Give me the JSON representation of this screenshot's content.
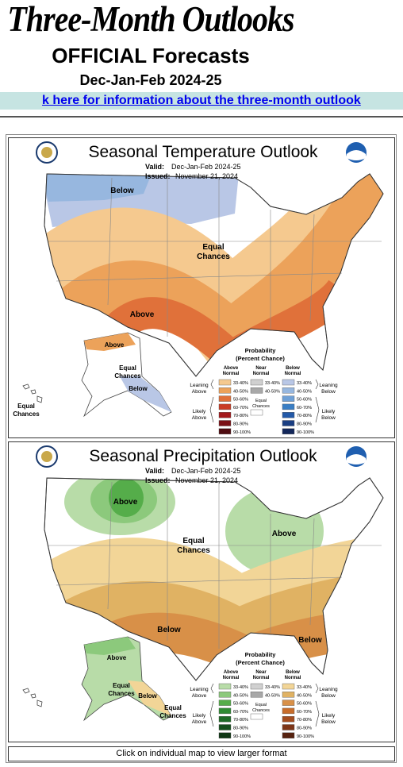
{
  "header": {
    "title": "Three-Month Outlooks",
    "subtitle": "OFFICIAL Forecasts",
    "period": "Dec-Jan-Feb 2024-25"
  },
  "link": "k here for information about the three-month outlook",
  "maps": [
    {
      "title": "Seasonal Temperature Outlook",
      "valid_label": "Valid:",
      "valid": "Dec-Jan-Feb 2024-25",
      "issued_label": "Issued:",
      "issued": "November 21, 2024",
      "regions": [
        [
          "Below"
        ],
        [
          "Equal",
          "Chances"
        ],
        [
          "Above"
        ],
        [
          "Above"
        ],
        [
          "Equal",
          "Chances"
        ],
        [
          "Below"
        ],
        [
          "Equal",
          "Chances"
        ]
      ],
      "legend": {
        "title": "Probability",
        "subtitle": "(Percent Chance)",
        "headers": [
          [
            "Above",
            "Normal"
          ],
          [
            "Near",
            "Normal"
          ],
          [
            "Below",
            "Normal"
          ]
        ],
        "above": [
          "33-40%",
          "40-50%",
          "50-60%",
          "60-70%",
          "70-80%",
          "80-90%",
          "90-100%"
        ],
        "near": [
          "33-40%",
          "40-50%"
        ],
        "below": [
          "33-40%",
          "40-50%",
          "50-60%",
          "60-70%",
          "70-80%",
          "80-90%",
          "90-100%"
        ],
        "equal": [
          "Equal",
          "Chances"
        ],
        "leaning_above": [
          "Leaning",
          "Above"
        ],
        "likely_above": [
          "Likely",
          "Above"
        ],
        "leaning_below": [
          "Leaning",
          "Below"
        ],
        "likely_below": [
          "Likely",
          "Below"
        ]
      }
    },
    {
      "title": "Seasonal Precipitation Outlook",
      "valid_label": "Valid:",
      "valid": "Dec-Jan-Feb 2024-25",
      "issued_label": "Issued:",
      "issued": "November 21, 2024",
      "regions": [
        [
          "Above"
        ],
        [
          "Equal",
          "Chances"
        ],
        [
          "Above"
        ],
        [
          "Below"
        ],
        [
          "Below"
        ],
        [
          "Above"
        ],
        [
          "Equal",
          "Chances"
        ],
        [
          "Below"
        ],
        [
          "Equal",
          "Chances"
        ]
      ],
      "legend": {
        "title": "Probability",
        "subtitle": "(Percent Chance)",
        "headers": [
          [
            "Above",
            "Normal"
          ],
          [
            "Near",
            "Normal"
          ],
          [
            "Below",
            "Normal"
          ]
        ],
        "above": [
          "33-40%",
          "40-50%",
          "50-60%",
          "60-70%",
          "70-80%",
          "80-90%",
          "90-100%"
        ],
        "near": [
          "33-40%",
          "40-50%"
        ],
        "below": [
          "33-40%",
          "40-50%",
          "50-60%",
          "60-70%",
          "70-80%",
          "80-90%",
          "90-100%"
        ],
        "equal": [
          "Equal",
          "Chances"
        ],
        "leaning_above": [
          "Leaning",
          "Above"
        ],
        "likely_above": [
          "Likely",
          "Above"
        ],
        "leaning_below": [
          "Leaning",
          "Below"
        ],
        "likely_below": [
          "Likely",
          "Below"
        ]
      }
    }
  ],
  "footer": "Click on individual map to view larger format"
}
